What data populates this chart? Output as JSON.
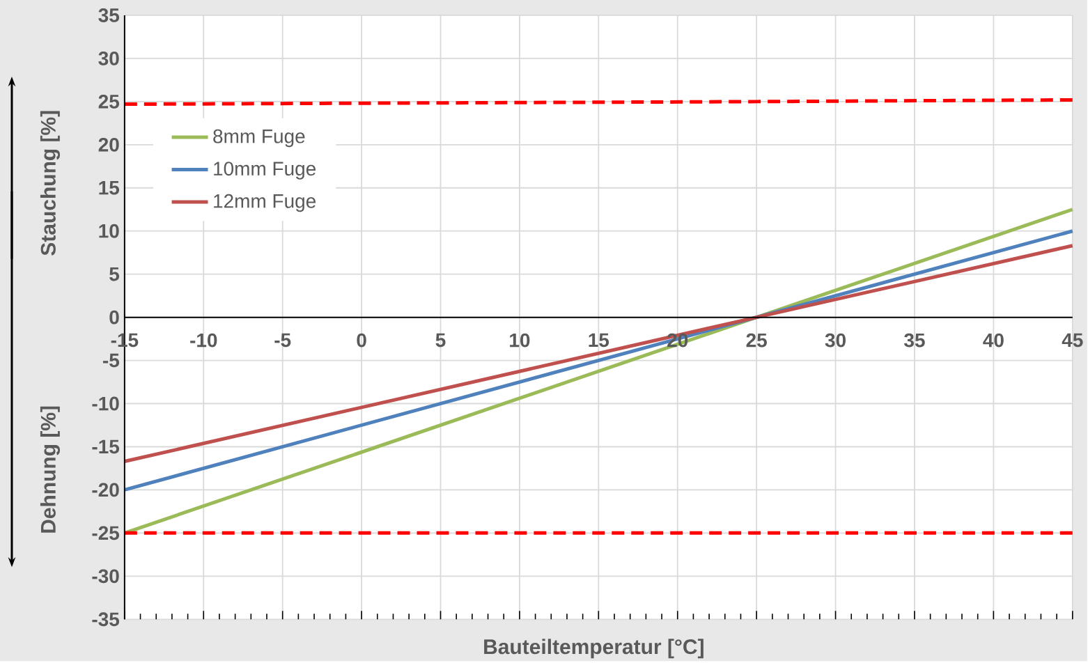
{
  "chart_data": {
    "type": "line",
    "xlabel": "Bauteiltemperatur [°C]",
    "ylabel": "Stauchung [%]",
    "annotations": [
      "Dehnung [%]"
    ],
    "x": [
      -15,
      25,
      45
    ],
    "series": [
      {
        "name": "8mm Fuge",
        "color": "#9bbb59",
        "values": [
          -25,
          0,
          12.5
        ]
      },
      {
        "name": "10mm Fuge",
        "color": "#4f81bd",
        "values": [
          -20,
          0,
          10
        ]
      },
      {
        "name": "12mm Fuge",
        "color": "#c0504d",
        "values": [
          -16.7,
          0,
          8.3
        ]
      },
      {
        "color": "#ff0000",
        "line_style": "dashed",
        "values": [
          24.7,
          25.0,
          25.2
        ]
      },
      {
        "color": "#ff0000",
        "line_style": "dashed",
        "values": [
          -25,
          -25,
          -25
        ]
      }
    ],
    "xlim": [
      -15,
      45
    ],
    "ylim": [
      -35,
      35
    ],
    "xticks": [
      -15,
      -10,
      -5,
      0,
      5,
      10,
      15,
      20,
      25,
      30,
      35,
      40,
      45
    ],
    "yticks": [
      -35,
      -30,
      -25,
      -20,
      -15,
      -10,
      -5,
      0,
      5,
      10,
      15,
      20,
      25,
      30,
      35
    ],
    "grid": true,
    "legend": "top left",
    "line_style": "solid",
    "marker": "none"
  }
}
